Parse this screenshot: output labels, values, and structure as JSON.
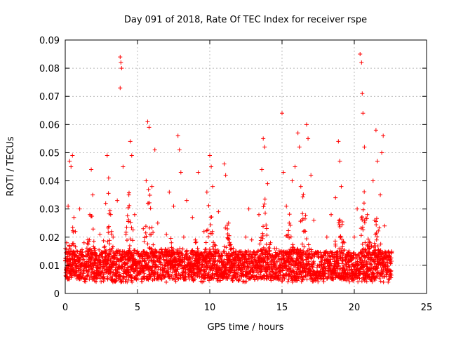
{
  "chart_data": {
    "type": "scatter",
    "title": "Day 091 of 2018, Rate Of TEC Index for receiver rspe",
    "xlabel": "GPS time / hours",
    "ylabel": "ROTI / TECUs",
    "xlim": [
      0,
      25
    ],
    "ylim": [
      0,
      0.09
    ],
    "xticks": [
      "0",
      "5",
      "10",
      "15",
      "20",
      "25"
    ],
    "yticks": [
      "0",
      "0.01",
      "0.02",
      "0.03",
      "0.04",
      "0.05",
      "0.06",
      "0.07",
      "0.08",
      "0.09"
    ],
    "grid": true,
    "marker": "+",
    "color": "#ff0000",
    "series": [
      {
        "points": [
          [
            0.1,
            0.018
          ],
          [
            0.2,
            0.031
          ],
          [
            0.3,
            0.047
          ],
          [
            0.4,
            0.045
          ],
          [
            0.5,
            0.049
          ],
          [
            0.6,
            0.027
          ],
          [
            0.7,
            0.022
          ],
          [
            0.8,
            0.012
          ],
          [
            1.0,
            0.03
          ],
          [
            1.1,
            0.008
          ],
          [
            1.3,
            0.018
          ],
          [
            1.5,
            0.006
          ],
          [
            1.7,
            0.028
          ],
          [
            1.8,
            0.044
          ],
          [
            1.9,
            0.035
          ],
          [
            2.0,
            0.016
          ],
          [
            2.2,
            0.01
          ],
          [
            2.4,
            0.021
          ],
          [
            2.6,
            0.008
          ],
          [
            2.8,
            0.032
          ],
          [
            2.9,
            0.049
          ],
          [
            3.0,
            0.041
          ],
          [
            3.2,
            0.022
          ],
          [
            3.4,
            0.011
          ],
          [
            3.6,
            0.033
          ],
          [
            3.8,
            0.084
          ],
          [
            3.85,
            0.082
          ],
          [
            3.9,
            0.08
          ],
          [
            3.8,
            0.073
          ],
          [
            4.0,
            0.045
          ],
          [
            4.2,
            0.021
          ],
          [
            4.4,
            0.035
          ],
          [
            4.5,
            0.054
          ],
          [
            4.6,
            0.049
          ],
          [
            4.8,
            0.028
          ],
          [
            5.0,
            0.015
          ],
          [
            5.2,
            0.009
          ],
          [
            5.4,
            0.023
          ],
          [
            5.6,
            0.04
          ],
          [
            5.7,
            0.061
          ],
          [
            5.8,
            0.059
          ],
          [
            6.0,
            0.038
          ],
          [
            6.2,
            0.051
          ],
          [
            6.4,
            0.025
          ],
          [
            6.6,
            0.013
          ],
          [
            6.8,
            0.008
          ],
          [
            7.0,
            0.021
          ],
          [
            7.2,
            0.036
          ],
          [
            7.5,
            0.031
          ],
          [
            7.6,
            0.011
          ],
          [
            7.8,
            0.056
          ],
          [
            7.9,
            0.051
          ],
          [
            8.0,
            0.043
          ],
          [
            8.2,
            0.02
          ],
          [
            8.4,
            0.033
          ],
          [
            8.6,
            0.012
          ],
          [
            8.8,
            0.027
          ],
          [
            9.0,
            0.019
          ],
          [
            9.2,
            0.043
          ],
          [
            9.4,
            0.007
          ],
          [
            9.6,
            0.022
          ],
          [
            9.8,
            0.036
          ],
          [
            10.0,
            0.049
          ],
          [
            10.1,
            0.045
          ],
          [
            10.2,
            0.038
          ],
          [
            10.4,
            0.017
          ],
          [
            10.6,
            0.029
          ],
          [
            10.8,
            0.011
          ],
          [
            11.0,
            0.046
          ],
          [
            11.1,
            0.042
          ],
          [
            11.3,
            0.025
          ],
          [
            11.5,
            0.009
          ],
          [
            11.8,
            0.015
          ],
          [
            12.0,
            0.01
          ],
          [
            12.2,
            0.006
          ],
          [
            12.5,
            0.02
          ],
          [
            12.7,
            0.03
          ],
          [
            12.9,
            0.019
          ],
          [
            13.1,
            0.012
          ],
          [
            13.4,
            0.028
          ],
          [
            13.6,
            0.044
          ],
          [
            13.7,
            0.055
          ],
          [
            13.8,
            0.052
          ],
          [
            14.0,
            0.039
          ],
          [
            14.2,
            0.018
          ],
          [
            14.5,
            0.01
          ],
          [
            14.8,
            0.014
          ],
          [
            15.0,
            0.064
          ],
          [
            15.1,
            0.043
          ],
          [
            15.3,
            0.031
          ],
          [
            15.5,
            0.025
          ],
          [
            15.7,
            0.04
          ],
          [
            15.9,
            0.045
          ],
          [
            16.1,
            0.057
          ],
          [
            16.2,
            0.052
          ],
          [
            16.3,
            0.038
          ],
          [
            16.5,
            0.022
          ],
          [
            16.7,
            0.06
          ],
          [
            16.8,
            0.055
          ],
          [
            17.0,
            0.042
          ],
          [
            17.2,
            0.026
          ],
          [
            17.5,
            0.013
          ],
          [
            17.8,
            0.008
          ],
          [
            18.1,
            0.02
          ],
          [
            18.4,
            0.028
          ],
          [
            18.7,
            0.034
          ],
          [
            18.9,
            0.054
          ],
          [
            19.0,
            0.047
          ],
          [
            19.1,
            0.038
          ],
          [
            19.3,
            0.018
          ],
          [
            19.5,
            0.011
          ],
          [
            19.8,
            0.007
          ],
          [
            20.0,
            0.02
          ],
          [
            20.2,
            0.03
          ],
          [
            20.4,
            0.085
          ],
          [
            20.5,
            0.082
          ],
          [
            20.55,
            0.071
          ],
          [
            20.6,
            0.064
          ],
          [
            20.7,
            0.052
          ],
          [
            20.9,
            0.028
          ],
          [
            21.1,
            0.018
          ],
          [
            21.3,
            0.04
          ],
          [
            21.5,
            0.058
          ],
          [
            21.6,
            0.047
          ],
          [
            21.8,
            0.035
          ],
          [
            21.9,
            0.05
          ],
          [
            22.0,
            0.056
          ],
          [
            22.1,
            0.024
          ],
          [
            22.2,
            0.011
          ],
          [
            22.3,
            0.009
          ],
          [
            22.4,
            0.013
          ],
          [
            22.5,
            0.007
          ]
        ]
      }
    ],
    "background_cloud": {
      "x_range": [
        0,
        22.6
      ],
      "baseline": [
        0.005,
        0.015
      ],
      "note_bursts": [
        [
          0.5,
          0.025
        ],
        [
          1.8,
          0.03
        ],
        [
          3.0,
          0.038
        ],
        [
          4.4,
          0.04
        ],
        [
          5.8,
          0.04
        ],
        [
          7.3,
          0.02
        ],
        [
          9.0,
          0.02
        ],
        [
          10.0,
          0.035
        ],
        [
          11.2,
          0.028
        ],
        [
          13.8,
          0.035
        ],
        [
          15.5,
          0.03
        ],
        [
          16.5,
          0.04
        ],
        [
          19.0,
          0.035
        ],
        [
          20.7,
          0.04
        ],
        [
          21.5,
          0.035
        ]
      ]
    }
  }
}
